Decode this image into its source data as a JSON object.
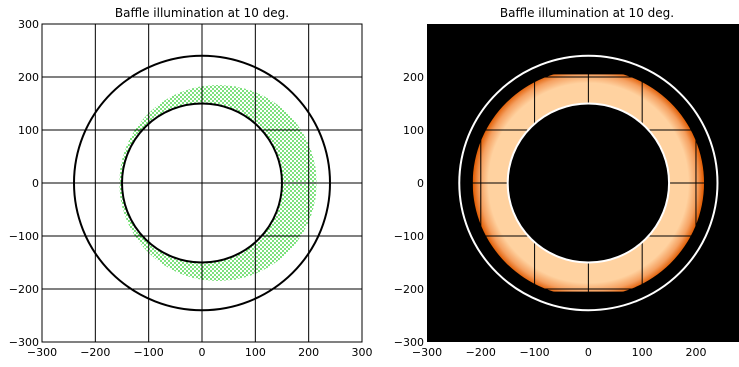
{
  "chart_data": [
    {
      "type": "scatter",
      "title": "Baffle illumination at 10 deg.",
      "xlabel": "",
      "ylabel": "",
      "xlim": [
        -300,
        300
      ],
      "ylim": [
        -300,
        300
      ],
      "xticks": [
        -300,
        -200,
        -100,
        0,
        100,
        200,
        300
      ],
      "yticks": [
        -300,
        -200,
        -100,
        0,
        100,
        200,
        300
      ],
      "grid": true,
      "background": "#ffffff",
      "circles": [
        {
          "name": "baffle-inner-edge",
          "cx": 0,
          "cy": 0,
          "r": 150,
          "color": "#000000"
        },
        {
          "name": "baffle-outer-edge",
          "cx": 0,
          "cy": 0,
          "r": 240,
          "color": "#000000"
        }
      ],
      "illuminated_region": {
        "name": "ray-footprint",
        "color": "#22cc22",
        "outer_circle": {
          "cx": 30,
          "cy": 0,
          "r": 185
        },
        "inner_circle": {
          "cx": 0,
          "cy": 0,
          "r": 150
        }
      }
    },
    {
      "type": "heatmap",
      "title": "Baffle illumination at 10 deg.",
      "xlabel": "",
      "ylabel": "",
      "xlim": [
        -300,
        280
      ],
      "ylim": [
        -300,
        300
      ],
      "xticks": [
        -300,
        -200,
        -100,
        0,
        100,
        200
      ],
      "yticks": [
        -300,
        -200,
        -100,
        0,
        100,
        200
      ],
      "grid": true,
      "background": "#000000",
      "circles": [
        {
          "name": "baffle-inner-edge",
          "cx": 0,
          "cy": 0,
          "r": 150,
          "color": "#ffffff"
        },
        {
          "name": "baffle-outer-edge",
          "cx": 0,
          "cy": 0,
          "r": 240,
          "color": "#ffffff"
        }
      ],
      "intensity_annulus": {
        "cx": 0,
        "cy": 0,
        "r_inner": 150,
        "r_outer": 215,
        "edge_color": "#e05a00",
        "peak_color": "#ffd2a0",
        "clip_box": {
          "xmin": -215,
          "xmax": 215,
          "ymin": -205,
          "ymax": 205
        }
      }
    }
  ]
}
